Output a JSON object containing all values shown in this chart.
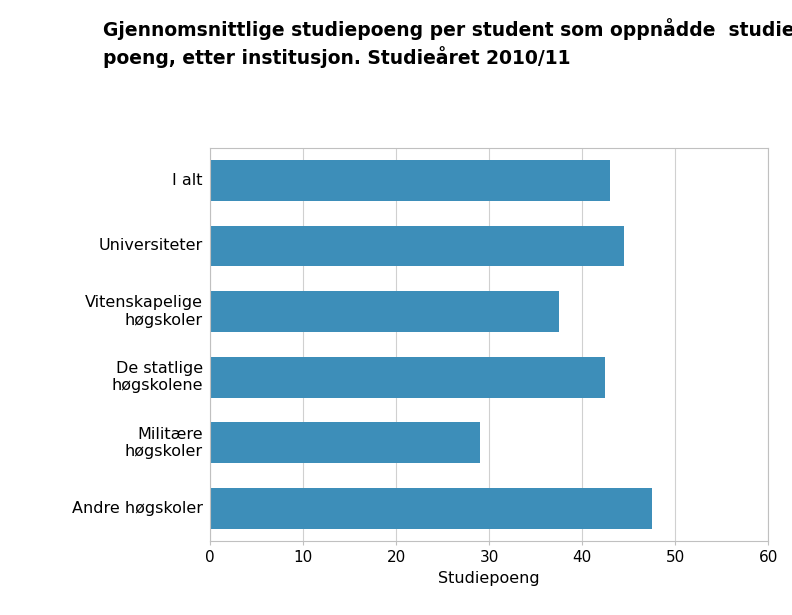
{
  "categories": [
    "Andre høgskoler",
    "Militære\nhøgskoler",
    "De statlige\nhøgskolene",
    "Vitenskapelige\nhøgskoler",
    "Universiteter",
    "I alt"
  ],
  "values": [
    47.5,
    29.0,
    42.5,
    37.5,
    44.5,
    43.0
  ],
  "bar_color": "#3d8eb9",
  "title_line1": "Gjennomsnittlige studiepoeng per student som oppnådde  studie-",
  "title_line2": "poeng, etter institusjon. Studieåret 2010/11",
  "xlabel": "Studiepoeng",
  "xlim": [
    0,
    60
  ],
  "xticks": [
    0,
    10,
    20,
    30,
    40,
    50,
    60
  ],
  "background_color": "#ffffff",
  "bar_height": 0.62,
  "title_fontsize": 13.5,
  "label_fontsize": 11.5,
  "tick_fontsize": 11,
  "grid_color": "#d0d0d0",
  "spine_color": "#c0c0c0"
}
